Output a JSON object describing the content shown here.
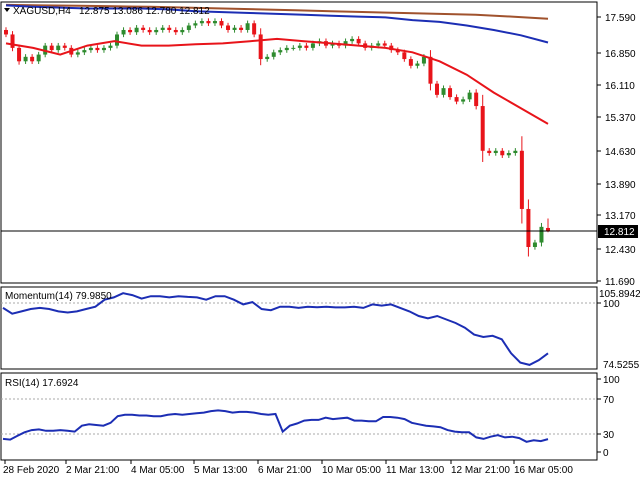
{
  "header": {
    "symbol": "XAGUSD,H4",
    "ohlc": "12.875 13.086 12.780 12.812"
  },
  "colors": {
    "bull": "#2e8b2e",
    "bear": "#e8141a",
    "ma_fast": "#e8141a",
    "ma_mid": "#1c2eb4",
    "ma_slow": "#a0522d",
    "indicator_line": "#1c2eb4",
    "current_price_label_bg": "#000000",
    "grid_dotted": "#a9a9a9"
  },
  "price_panel": {
    "ticks": [
      "17.590",
      "16.850",
      "16.110",
      "15.370",
      "14.630",
      "13.890",
      "13.170",
      "12.430",
      "11.690"
    ],
    "current_price_label": "12.812"
  },
  "momentum_panel": {
    "label": "Momentum(14) 79.9850",
    "ticks": [
      "105.8942",
      "100",
      "74.5255"
    ]
  },
  "rsi_panel": {
    "label": "RSI(14) 17.6924",
    "ticks": [
      "100",
      "70",
      "30",
      "0"
    ]
  },
  "time_axis": {
    "labels": [
      "28 Feb 2020",
      "2 Mar 21:00",
      "4 Mar 05:00",
      "5 Mar 13:00",
      "6 Mar 21:00",
      "10 Mar 05:00",
      "11 Mar 13:00",
      "12 Mar 21:00",
      "16 Mar 05:00"
    ]
  },
  "chart_data": [
    {
      "type": "candlestick",
      "symbol": "XAGUSD,H4",
      "ylim": [
        11.69,
        17.95
      ],
      "last": {
        "open": 12.875,
        "high": 13.086,
        "low": 12.78,
        "close": 12.812
      },
      "closes": [
        17.2,
        16.9,
        16.6,
        16.7,
        16.6,
        16.75,
        16.95,
        16.85,
        16.95,
        16.9,
        16.75,
        16.8,
        16.85,
        16.9,
        16.85,
        16.9,
        16.95,
        17.2,
        17.3,
        17.25,
        17.35,
        17.3,
        17.25,
        17.3,
        17.35,
        17.3,
        17.25,
        17.3,
        17.4,
        17.45,
        17.5,
        17.45,
        17.5,
        17.4,
        17.3,
        17.35,
        17.3,
        17.45,
        17.2,
        16.65,
        16.7,
        16.8,
        16.85,
        16.9,
        16.9,
        16.95,
        16.9,
        17.0,
        17.05,
        16.95,
        17.0,
        16.95,
        17.05,
        17.1,
        17.0,
        16.9,
        16.95,
        17.0,
        16.95,
        16.85,
        16.8,
        16.65,
        16.5,
        16.55,
        16.7,
        16.1,
        15.85,
        16.0,
        15.8,
        15.7,
        15.75,
        15.9,
        15.6,
        14.6,
        14.55,
        14.6,
        14.5,
        14.55,
        14.6,
        13.3,
        12.45,
        12.55,
        12.9,
        12.8
      ],
      "ma_fast": [
        17.0,
        16.9,
        16.75,
        16.95,
        17.05,
        16.95,
        16.95,
        16.98,
        17.0,
        17.05,
        17.1,
        17.05,
        17.0,
        16.95,
        16.9,
        16.8,
        16.6,
        16.3,
        15.9,
        15.55,
        15.2
      ],
      "ma_mid": [
        17.85,
        17.82,
        17.8,
        17.78,
        17.78,
        17.78,
        17.76,
        17.72,
        17.7,
        17.68,
        17.66,
        17.64,
        17.62,
        17.6,
        17.58,
        17.52,
        17.48,
        17.4,
        17.3,
        17.18,
        17.02
      ],
      "ma_slow": [
        17.86,
        17.85,
        17.84,
        17.83,
        17.82,
        17.8,
        17.78,
        17.76,
        17.74,
        17.72,
        17.7,
        17.68,
        17.66,
        17.64,
        17.6,
        17.55
      ],
      "x_labels": [
        "28 Feb 2020",
        "2 Mar 21:00",
        "4 Mar 05:00",
        "5 Mar 13:00",
        "6 Mar 21:00",
        "10 Mar 05:00",
        "11 Mar 13:00",
        "12 Mar 21:00",
        "16 Mar 05:00"
      ]
    },
    {
      "type": "line",
      "title": "Momentum(14) 79.9850",
      "ylim": [
        74.5255,
        105.8942
      ],
      "series": [
        {
          "values": [
            99.5,
            97,
            98,
            99,
            99.5,
            99,
            98,
            97.5,
            98,
            99,
            100,
            103,
            104,
            105.8,
            105,
            103.5,
            104.5,
            104.5,
            104,
            104.5,
            104.2,
            104,
            103,
            104.5,
            104.5,
            103,
            101,
            102,
            99,
            98.5,
            100,
            100,
            99.5,
            100,
            99.8,
            100,
            99.7,
            99.7,
            100,
            99.5,
            101,
            100.5,
            101,
            99.5,
            98,
            96,
            95,
            96,
            94.5,
            93,
            91,
            88,
            87,
            87.5,
            86,
            80,
            76,
            75,
            77,
            79.985
          ]
        }
      ]
    },
    {
      "type": "line",
      "title": "RSI(14) 17.6924",
      "ylim": [
        0,
        100
      ],
      "series": [
        {
          "values": [
            18,
            17,
            22,
            27,
            30,
            31,
            29,
            29,
            30,
            29,
            28,
            36,
            38,
            37,
            36,
            40,
            49,
            51,
            51,
            50,
            50,
            49,
            49,
            51,
            52,
            51,
            52,
            53,
            54,
            56,
            57,
            56,
            54,
            55,
            55,
            54,
            52,
            51,
            52,
            28,
            36,
            39,
            43,
            44,
            44,
            47,
            45,
            46,
            47,
            43,
            43,
            42,
            42,
            48,
            48,
            47,
            45,
            40,
            38,
            36,
            35,
            34,
            30,
            28,
            27,
            27,
            20,
            18,
            21,
            23,
            20,
            21,
            19,
            14,
            16,
            15,
            17.6924
          ]
        }
      ]
    }
  ]
}
